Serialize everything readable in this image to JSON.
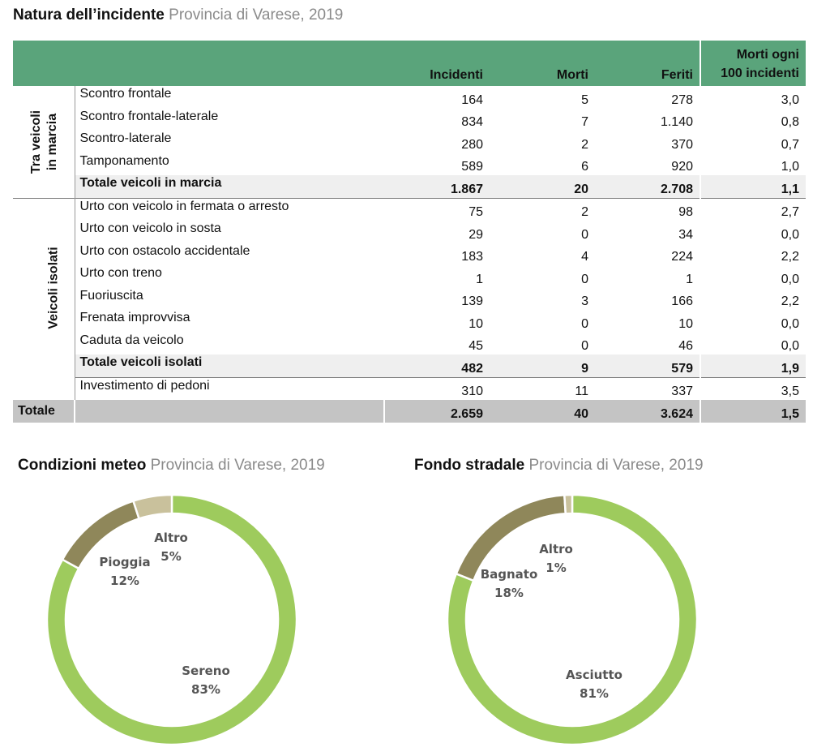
{
  "title": {
    "main": "Natura dell’incidente",
    "sub": "Provincia di Varese, 2019"
  },
  "table": {
    "columns": [
      "Incidenti",
      "Morti",
      "Feriti"
    ],
    "last_column": [
      "Morti ogni",
      "100 incidenti"
    ],
    "groups": [
      {
        "label_lines": [
          "Tra veicoli",
          "in marcia"
        ],
        "rows": [
          {
            "label": "Scontro frontale",
            "incidenti": "164",
            "morti": "5",
            "feriti": "278",
            "rate": "3,0"
          },
          {
            "label": "Scontro frontale-laterale",
            "incidenti": "834",
            "morti": "7",
            "feriti": "1.140",
            "rate": "0,8"
          },
          {
            "label": "Scontro-laterale",
            "incidenti": "280",
            "morti": "2",
            "feriti": "370",
            "rate": "0,7"
          },
          {
            "label": "Tamponamento",
            "incidenti": "589",
            "morti": "6",
            "feriti": "920",
            "rate": "1,0"
          }
        ],
        "subtotal": {
          "label": "Totale veicoli in marcia",
          "incidenti": "1.867",
          "morti": "20",
          "feriti": "2.708",
          "rate": "1,1"
        }
      },
      {
        "label_lines": [
          "Veicoli isolati"
        ],
        "rows": [
          {
            "label": "Urto con veicolo in fermata o arresto",
            "incidenti": "75",
            "morti": "2",
            "feriti": "98",
            "rate": "2,7"
          },
          {
            "label": "Urto con veicolo in sosta",
            "incidenti": "29",
            "morti": "0",
            "feriti": "34",
            "rate": "0,0"
          },
          {
            "label": "Urto con ostacolo accidentale",
            "incidenti": "183",
            "morti": "4",
            "feriti": "224",
            "rate": "2,2"
          },
          {
            "label": "Urto con treno",
            "incidenti": "1",
            "morti": "0",
            "feriti": "1",
            "rate": "0,0"
          },
          {
            "label": "Fuoriuscita",
            "incidenti": "139",
            "morti": "3",
            "feriti": "166",
            "rate": "2,2"
          },
          {
            "label": "Frenata improvvisa",
            "incidenti": "10",
            "morti": "0",
            "feriti": "10",
            "rate": "0,0"
          },
          {
            "label": "Caduta da veicolo",
            "incidenti": "45",
            "morti": "0",
            "feriti": "46",
            "rate": "0,0"
          }
        ],
        "subtotal": {
          "label": "Totale veicoli isolati",
          "incidenti": "482",
          "morti": "9",
          "feriti": "579",
          "rate": "1,9"
        }
      }
    ],
    "extra_row": {
      "label": "Investimento di pedoni",
      "incidenti": "310",
      "morti": "11",
      "feriti": "337",
      "rate": "3,5"
    },
    "total": {
      "label": "Totale",
      "incidenti": "2.659",
      "morti": "40",
      "feriti": "3.624",
      "rate": "1,5"
    }
  },
  "chart_data": [
    {
      "type": "pie",
      "title": "Condizioni meteo",
      "subtitle": "Provincia di Varese, 2019",
      "donut": true,
      "slices": [
        {
          "label": "Sereno",
          "value": 83,
          "pct_label": "83%",
          "color": "#9ecb5d"
        },
        {
          "label": "Pioggia",
          "value": 12,
          "pct_label": "12%",
          "color": "#8f875a"
        },
        {
          "label": "Altro",
          "value": 5,
          "pct_label": "5%",
          "color": "#c9c19c"
        }
      ]
    },
    {
      "type": "pie",
      "title": "Fondo stradale",
      "subtitle": "Provincia di Varese, 2019",
      "donut": true,
      "slices": [
        {
          "label": "Asciutto",
          "value": 81,
          "pct_label": "81%",
          "color": "#9ecb5d"
        },
        {
          "label": "Bagnato",
          "value": 18,
          "pct_label": "18%",
          "color": "#8f875a"
        },
        {
          "label": "Altro",
          "value": 1,
          "pct_label": "1%",
          "color": "#c9c19c"
        }
      ]
    }
  ]
}
